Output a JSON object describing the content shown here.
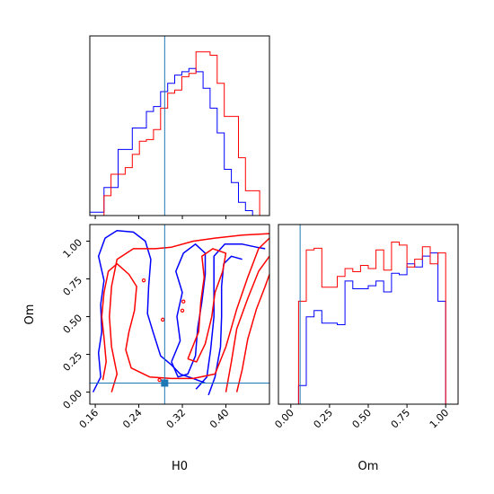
{
  "chart_data": [
    {
      "type": "histogram",
      "panel": "H0 marginal",
      "xlim": [
        0.15,
        0.48
      ],
      "bins": [
        0.15,
        0.163,
        0.176,
        0.189,
        0.202,
        0.215,
        0.228,
        0.241,
        0.254,
        0.267,
        0.28,
        0.293,
        0.306,
        0.319,
        0.332,
        0.345,
        0.358,
        0.371,
        0.384,
        0.397,
        0.41,
        0.423,
        0.436,
        0.449,
        0.462,
        0.475
      ],
      "truth": 0.2875,
      "series": [
        {
          "color": "#0000ff",
          "counts": [
            2,
            2,
            17,
            17,
            40,
            40,
            53,
            53,
            63,
            66,
            75,
            80,
            85,
            87,
            89,
            87,
            77,
            65,
            50,
            28,
            20,
            8,
            3,
            0,
            0
          ]
        },
        {
          "color": "#ff0000",
          "counts": [
            0,
            0,
            12,
            25,
            25,
            29,
            37,
            45,
            46,
            52,
            65,
            74,
            76,
            84,
            86,
            99,
            99,
            97,
            80,
            60,
            60,
            35,
            15,
            15,
            0
          ]
        }
      ]
    },
    {
      "type": "contour",
      "panel": "H0 vs Om",
      "xlabel": "H0",
      "ylabel": "Om",
      "xlim": [
        0.15,
        0.48
      ],
      "ylim": [
        -0.08,
        1.11
      ],
      "xticks": [
        "0.16",
        "0.24",
        "0.32",
        "0.40"
      ],
      "yticks": [
        "0.00",
        "0.25",
        "0.50",
        "0.75",
        "1.00"
      ],
      "truth": {
        "H0": 0.2875,
        "Om": 0.06
      },
      "series": [
        {
          "color": "#0000ff",
          "contours": [
            [
              [
                0.156,
                0.0
              ],
              [
                0.17,
                0.1
              ],
              [
                0.166,
                0.26
              ],
              [
                0.172,
                0.4
              ],
              [
                0.17,
                0.58
              ],
              [
                0.176,
                0.74
              ],
              [
                0.166,
                0.9
              ],
              [
                0.178,
                1.02
              ],
              [
                0.2,
                1.07
              ],
              [
                0.23,
                1.06
              ],
              [
                0.252,
                1.0
              ],
              [
                0.262,
                0.88
              ],
              [
                0.258,
                0.7
              ],
              [
                0.256,
                0.52
              ],
              [
                0.266,
                0.4
              ],
              [
                0.28,
                0.24
              ],
              [
                0.3,
                0.18
              ],
              [
                0.316,
                0.12
              ],
              [
                0.34,
                0.09
              ],
              [
                0.362,
                0.06
              ]
            ],
            [
              [
                0.3,
                0.2
              ],
              [
                0.316,
                0.34
              ],
              [
                0.31,
                0.5
              ],
              [
                0.32,
                0.66
              ],
              [
                0.308,
                0.8
              ],
              [
                0.322,
                0.92
              ],
              [
                0.344,
                0.98
              ],
              [
                0.362,
                0.92
              ],
              [
                0.362,
                0.78
              ],
              [
                0.356,
                0.6
              ],
              [
                0.348,
                0.42
              ],
              [
                0.344,
                0.24
              ],
              [
                0.33,
                0.12
              ],
              [
                0.312,
                0.1
              ],
              [
                0.3,
                0.2
              ]
            ],
            [
              [
                0.345,
                0.02
              ],
              [
                0.365,
                0.1
              ],
              [
                0.372,
                0.28
              ],
              [
                0.378,
                0.5
              ],
              [
                0.378,
                0.7
              ],
              [
                0.378,
                0.9
              ],
              [
                0.398,
                0.98
              ],
              [
                0.43,
                0.98
              ],
              [
                0.456,
                0.96
              ],
              [
                0.472,
                0.95
              ]
            ],
            [
              [
                0.368,
                -0.02
              ],
              [
                0.38,
                0.1
              ],
              [
                0.39,
                0.3
              ],
              [
                0.392,
                0.5
              ],
              [
                0.392,
                0.7
              ],
              [
                0.396,
                0.85
              ],
              [
                0.41,
                0.9
              ],
              [
                0.43,
                0.88
              ]
            ]
          ]
        },
        {
          "color": "#ff0000",
          "contours": [
            [
              [
                0.174,
                0.08
              ],
              [
                0.18,
                0.2
              ],
              [
                0.176,
                0.36
              ],
              [
                0.172,
                0.5
              ],
              [
                0.176,
                0.66
              ],
              [
                0.184,
                0.8
              ],
              [
                0.2,
                0.85
              ],
              [
                0.222,
                0.78
              ],
              [
                0.236,
                0.7
              ],
              [
                0.232,
                0.54
              ],
              [
                0.222,
                0.4
              ],
              [
                0.216,
                0.28
              ],
              [
                0.226,
                0.16
              ],
              [
                0.26,
                0.1
              ],
              [
                0.3,
                0.09
              ],
              [
                0.34,
                0.09
              ],
              [
                0.38,
                0.12
              ],
              [
                0.4,
                0.3
              ],
              [
                0.42,
                0.55
              ],
              [
                0.44,
                0.76
              ],
              [
                0.46,
                0.95
              ],
              [
                0.48,
                1.02
              ]
            ],
            [
              [
                0.19,
                0.0
              ],
              [
                0.2,
                0.12
              ],
              [
                0.19,
                0.3
              ],
              [
                0.186,
                0.5
              ],
              [
                0.19,
                0.7
              ],
              [
                0.2,
                0.88
              ],
              [
                0.23,
                0.95
              ],
              [
                0.27,
                0.95
              ],
              [
                0.3,
                0.96
              ],
              [
                0.34,
                1.0
              ],
              [
                0.38,
                1.02
              ],
              [
                0.43,
                1.04
              ],
              [
                0.48,
                1.05
              ]
            ],
            [
              [
                0.33,
                0.22
              ],
              [
                0.35,
                0.4
              ],
              [
                0.354,
                0.6
              ],
              [
                0.36,
                0.76
              ],
              [
                0.356,
                0.9
              ],
              [
                0.376,
                0.95
              ],
              [
                0.4,
                0.92
              ],
              [
                0.394,
                0.8
              ],
              [
                0.38,
                0.66
              ],
              [
                0.374,
                0.5
              ],
              [
                0.362,
                0.32
              ],
              [
                0.346,
                0.2
              ],
              [
                0.33,
                0.22
              ]
            ],
            [
              [
                0.4,
                0.0
              ],
              [
                0.41,
                0.2
              ],
              [
                0.42,
                0.42
              ],
              [
                0.44,
                0.62
              ],
              [
                0.46,
                0.8
              ],
              [
                0.48,
                0.9
              ]
            ],
            [
              [
                0.42,
                0.0
              ],
              [
                0.43,
                0.15
              ],
              [
                0.44,
                0.35
              ],
              [
                0.456,
                0.55
              ],
              [
                0.472,
                0.7
              ],
              [
                0.484,
                0.78
              ]
            ]
          ]
        }
      ]
    },
    {
      "type": "histogram",
      "panel": "Om marginal",
      "xlabel": "Om",
      "xlim": [
        -0.08,
        1.08
      ],
      "xticks": [
        "0.00",
        "0.25",
        "0.50",
        "0.75",
        "1.00"
      ],
      "bins": [
        -0.05,
        0.0,
        0.05,
        0.1,
        0.15,
        0.2,
        0.25,
        0.3,
        0.35,
        0.4,
        0.45,
        0.5,
        0.55,
        0.6,
        0.65,
        0.7,
        0.75,
        0.8,
        0.85,
        0.9,
        0.95,
        1.0,
        1.05
      ],
      "truth": 0.06,
      "series": [
        {
          "color": "#0000ff",
          "counts": [
            0,
            0,
            12,
            56,
            60,
            52,
            52,
            51,
            79,
            74,
            74,
            76,
            79,
            72,
            84,
            83,
            90,
            88,
            95,
            97,
            66,
            0
          ]
        },
        {
          "color": "#ff0000",
          "counts": [
            0,
            0,
            66,
            99,
            100,
            75,
            75,
            82,
            87,
            85,
            89,
            87,
            99,
            86,
            104,
            102,
            88,
            93,
            101,
            90,
            97,
            0
          ]
        }
      ]
    }
  ]
}
